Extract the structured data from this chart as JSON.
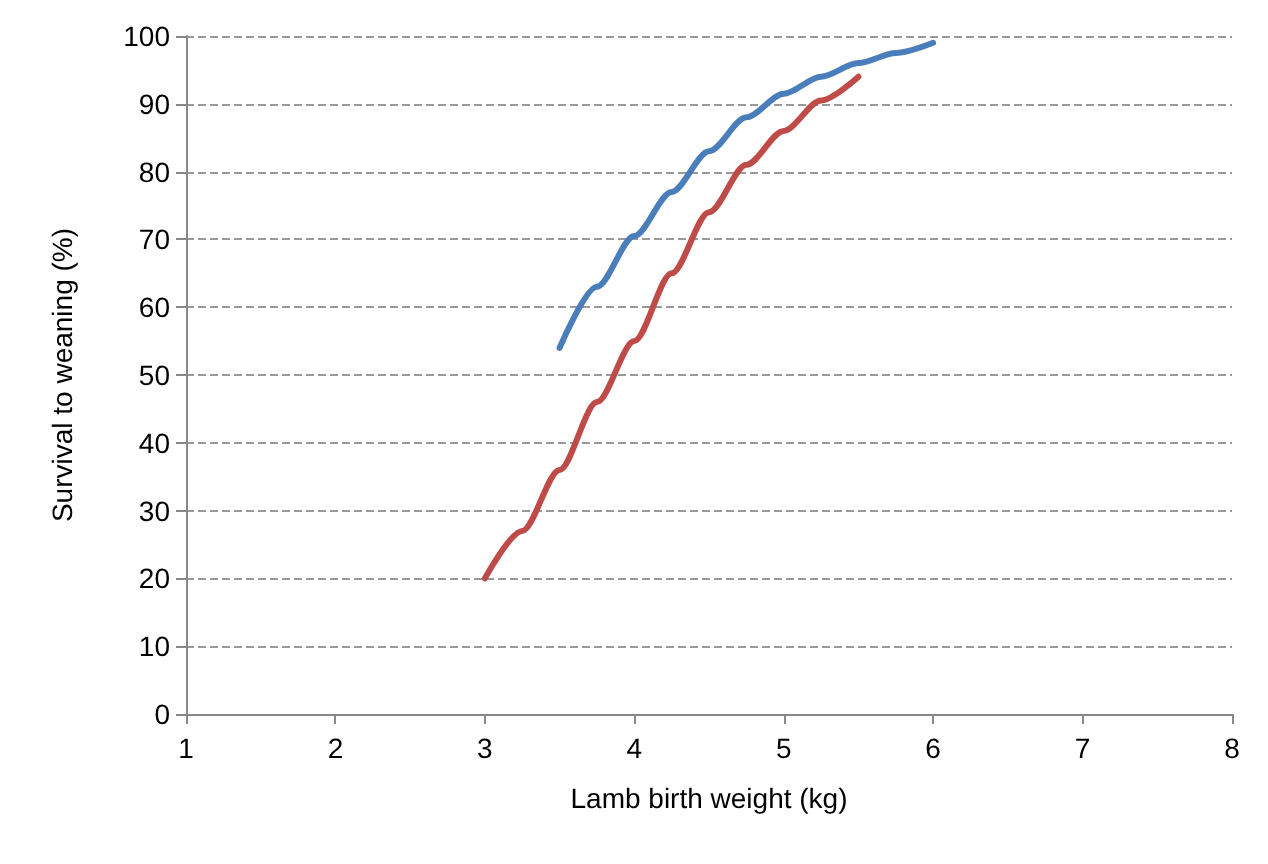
{
  "chart_data": {
    "type": "line",
    "xlabel": "Lamb birth weight (kg)",
    "ylabel": "Survival to weaning (%)",
    "xlim": [
      1,
      8
    ],
    "xticks": [
      1,
      2,
      3,
      4,
      5,
      6,
      7,
      8
    ],
    "ylim": [
      0,
      100
    ],
    "yticks": [
      0,
      10,
      20,
      30,
      40,
      50,
      60,
      70,
      80,
      90,
      100
    ],
    "grid": "y",
    "marker": "none",
    "line_style": "solid",
    "series": [
      {
        "color": "#4a7ebb",
        "x": [
          3.5,
          3.75,
          4,
          4.25,
          4.5,
          4.75,
          5,
          5.25,
          5.5,
          5.75,
          6
        ],
        "values": [
          54,
          63,
          70.5,
          77,
          83,
          88,
          91.5,
          94,
          96,
          97.5,
          99
        ]
      },
      {
        "color": "#be4b48",
        "x": [
          3,
          3.25,
          3.5,
          3.75,
          4,
          4.25,
          4.5,
          4.75,
          5,
          5.25,
          5.5
        ],
        "values": [
          20,
          27,
          36,
          46,
          55,
          65,
          74,
          81,
          86,
          90.5,
          94
        ]
      }
    ]
  }
}
